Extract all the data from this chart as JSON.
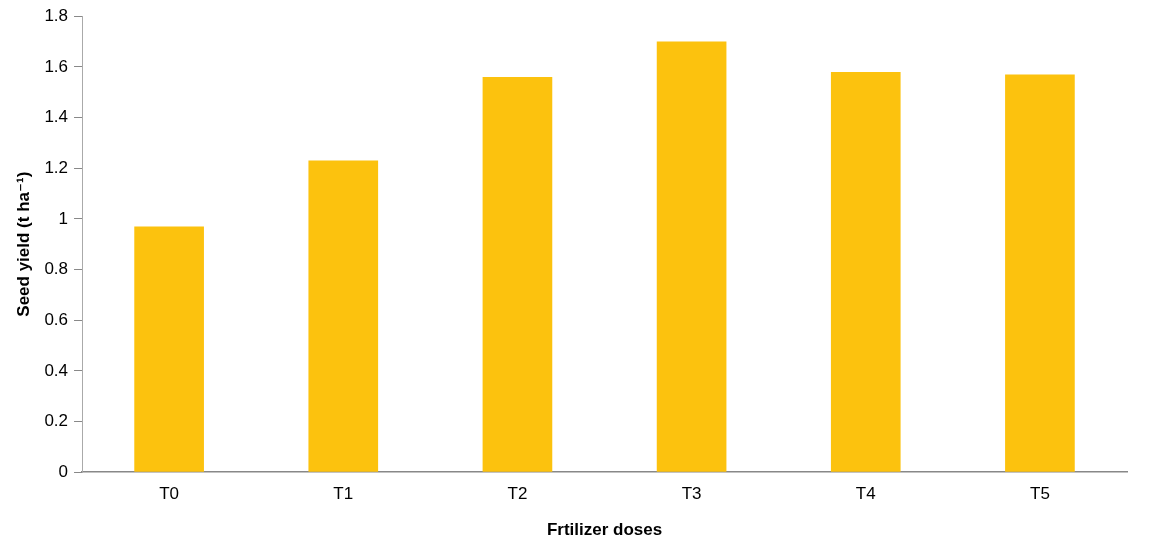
{
  "chart_data": {
    "type": "bar",
    "xlabel": "Frtilizer doses",
    "ylabel": "Seed yield (t ha⁻¹)",
    "categories": [
      "T0",
      "T1",
      "T2",
      "T3",
      "T4",
      "T5"
    ],
    "values": [
      0.97,
      1.23,
      1.56,
      1.7,
      1.58,
      1.57
    ],
    "color": "#fcc20e",
    "ylim": [
      0,
      1.8
    ],
    "yticks": [
      0,
      0.2,
      0.4,
      0.6,
      0.8,
      1,
      1.2,
      1.4,
      1.6,
      1.8
    ],
    "grid": false,
    "legend": false
  }
}
